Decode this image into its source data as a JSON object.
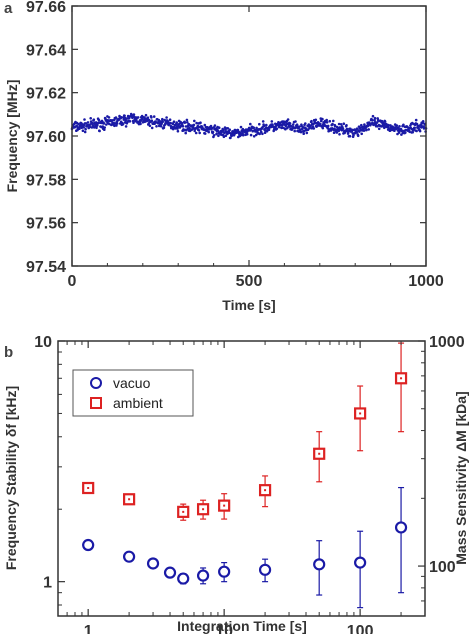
{
  "chart_data": [
    {
      "panel": "a",
      "type": "scatter",
      "xlabel": "Time [s]",
      "ylabel": "Frequency [MHz]",
      "xlim": [
        0,
        1000
      ],
      "ylim": [
        97.54,
        97.66
      ],
      "xticks": [
        0,
        500,
        1000
      ],
      "yticks": [
        "97.54",
        "97.56",
        "97.58",
        "97.60",
        "97.62",
        "97.64",
        "97.66"
      ],
      "color": "#1a1aa6",
      "trend": {
        "x": [
          0,
          100,
          170,
          250,
          350,
          450,
          520,
          600,
          650,
          700,
          760,
          800,
          850,
          900,
          950,
          1000
        ],
        "y": [
          97.604,
          97.606,
          97.608,
          97.606,
          97.604,
          97.601,
          97.603,
          97.605,
          97.603,
          97.606,
          97.603,
          97.602,
          97.606,
          97.604,
          97.603,
          97.605
        ]
      },
      "noise_amplitude": 0.0025
    },
    {
      "panel": "b",
      "type": "scatter",
      "xlabel": "Integration Time [s]",
      "ylabel": "Frequency Stability δf [kHz]",
      "ylabel2": "Mass Sensitivity ΔM [kDa]",
      "xscale": "log",
      "yscale": "log",
      "xlim": [
        0.6,
        300
      ],
      "ylim": [
        0.72,
        10
      ],
      "y2lim": [
        60,
        1000
      ],
      "xticks": [
        "1",
        "10",
        "100"
      ],
      "yticks": [
        "1",
        "10"
      ],
      "y2ticks": [
        "100",
        "1000"
      ],
      "legend_position": "top-left",
      "series": [
        {
          "name": "vacuo",
          "marker": "circle",
          "color": "#1a1aa6",
          "x": [
            1,
            2,
            3,
            4,
            5,
            7,
            10,
            20,
            50,
            100,
            200
          ],
          "y": [
            1.42,
            1.27,
            1.19,
            1.09,
            1.03,
            1.06,
            1.1,
            1.12,
            1.18,
            1.2,
            1.68
          ],
          "err": [
            0.03,
            0.03,
            0.03,
            0.04,
            0.05,
            0.08,
            0.1,
            0.12,
            0.3,
            0.42,
            0.78
          ]
        },
        {
          "name": "ambient",
          "marker": "square",
          "color": "#dd2222",
          "x": [
            1,
            2,
            5,
            7,
            10,
            20,
            50,
            100,
            200
          ],
          "y": [
            2.45,
            2.2,
            1.95,
            2.0,
            2.07,
            2.4,
            3.4,
            5.0,
            7.0
          ],
          "err": [
            0.06,
            0.06,
            0.15,
            0.18,
            0.25,
            0.35,
            0.8,
            1.5,
            2.8
          ]
        }
      ]
    }
  ]
}
